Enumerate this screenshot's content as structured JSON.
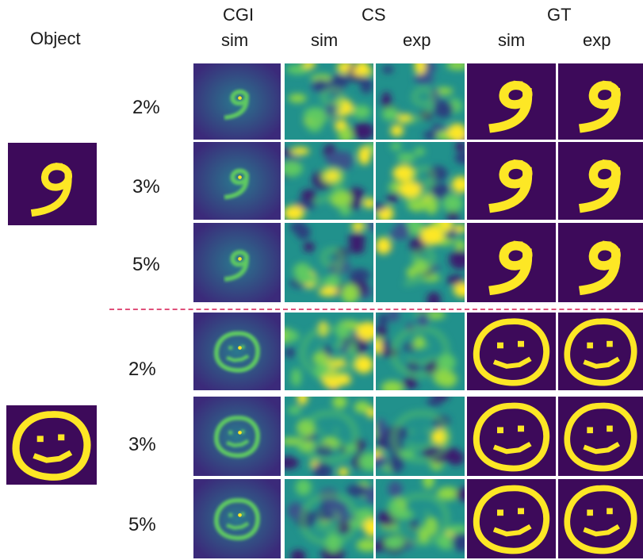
{
  "colors": {
    "viridis_dark": "#440154",
    "viridis_mid": "#21918c",
    "viridis_teal": "#2a788e",
    "viridis_green": "#5ec962",
    "viridis_yellow": "#fde725",
    "gt_background": "#3d0a5a",
    "divider": "#e0507a"
  },
  "headers": {
    "object": "Object",
    "cgi": "CGI",
    "cgi_sim": "sim",
    "cs": "CS",
    "cs_sim": "sim",
    "cs_exp": "exp",
    "gt": "GT",
    "gt_sim": "sim",
    "gt_exp": "exp"
  },
  "objects": [
    {
      "name": "digit-nine",
      "glyph": "9"
    },
    {
      "name": "smiley-face",
      "glyph": "smiley"
    }
  ],
  "rows": [
    {
      "ratio": "2%",
      "object": "digit-nine"
    },
    {
      "ratio": "3%",
      "object": "digit-nine"
    },
    {
      "ratio": "5%",
      "object": "digit-nine"
    },
    {
      "ratio": "2%",
      "object": "smiley-face"
    },
    {
      "ratio": "3%",
      "object": "smiley-face"
    },
    {
      "ratio": "5%",
      "object": "smiley-face"
    }
  ]
}
